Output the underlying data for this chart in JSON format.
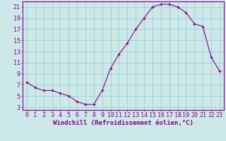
{
  "x": [
    0,
    1,
    2,
    3,
    4,
    5,
    6,
    7,
    8,
    9,
    10,
    11,
    12,
    13,
    14,
    15,
    16,
    17,
    18,
    19,
    20,
    21,
    22,
    23
  ],
  "y": [
    7.5,
    6.5,
    6.0,
    6.0,
    5.5,
    5.0,
    4.0,
    3.5,
    3.5,
    6.0,
    10.0,
    12.5,
    14.5,
    17.0,
    19.0,
    21.0,
    21.5,
    21.5,
    21.0,
    20.0,
    18.0,
    17.5,
    12.0,
    9.5
  ],
  "line_color": "#880088",
  "marker": "+",
  "marker_color": "#880088",
  "bg_color": "#cce8e8",
  "grid_color": "#99cccc",
  "axis_color": "#880088",
  "tick_color": "#880088",
  "xlabel": "Windchill (Refroidissement éolien,°C)",
  "xlabel_fontsize": 6.5,
  "tick_fontsize": 6,
  "ylim": [
    2.5,
    22
  ],
  "xlim": [
    -0.5,
    23.5
  ],
  "yticks": [
    3,
    5,
    7,
    9,
    11,
    13,
    15,
    17,
    19,
    21
  ],
  "xticks": [
    0,
    1,
    2,
    3,
    4,
    5,
    6,
    7,
    8,
    9,
    10,
    11,
    12,
    13,
    14,
    15,
    16,
    17,
    18,
    19,
    20,
    21,
    22,
    23
  ]
}
